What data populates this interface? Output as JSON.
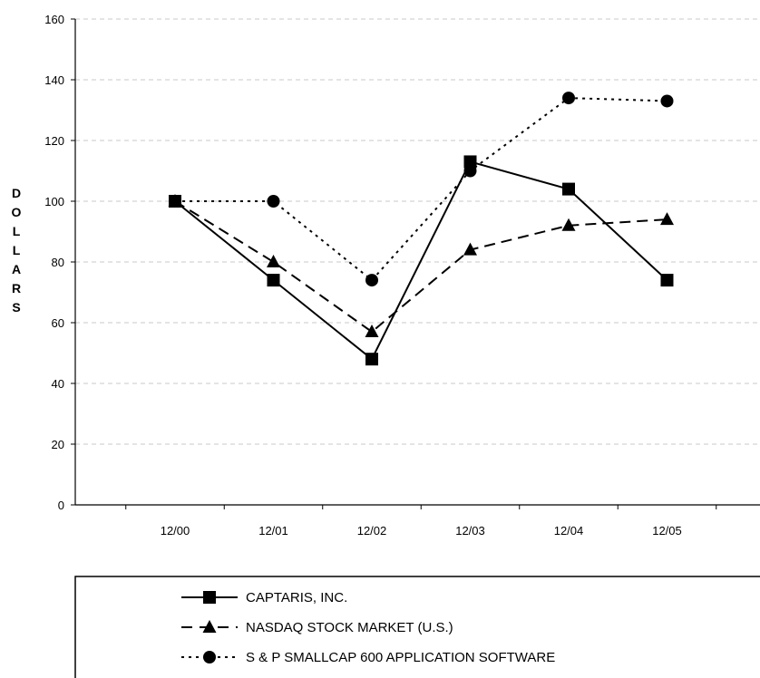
{
  "chart_data": {
    "type": "line",
    "title": "",
    "xlabel": "",
    "ylabel": "DOLLARS",
    "ylim": [
      0,
      160
    ],
    "yticks": [
      0,
      20,
      40,
      60,
      80,
      100,
      120,
      140,
      160
    ],
    "grid": true,
    "legend_position": "bottom",
    "categories": [
      "12/00",
      "12/01",
      "12/02",
      "12/03",
      "12/04",
      "12/05"
    ],
    "series": [
      {
        "name": "CAPTARIS, INC.",
        "marker": "square",
        "line": "solid",
        "values": [
          100,
          74,
          48,
          113,
          104,
          74
        ]
      },
      {
        "name": "NASDAQ STOCK MARKET (U.S.)",
        "marker": "triangle",
        "line": "dashed",
        "values": [
          100,
          80,
          57,
          84,
          92,
          94
        ]
      },
      {
        "name": "S & P SMALLCAP 600 APPLICATION SOFTWARE",
        "marker": "circle",
        "line": "dotted",
        "values": [
          100,
          100,
          74,
          110,
          134,
          133
        ]
      }
    ]
  }
}
